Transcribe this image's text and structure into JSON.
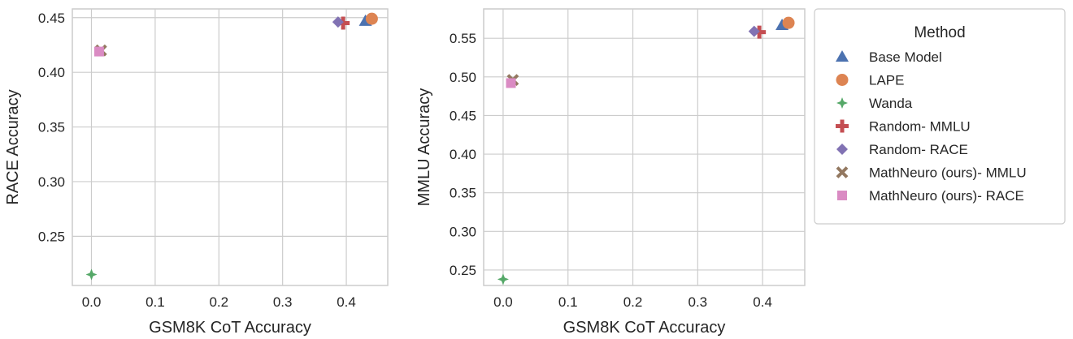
{
  "chart_data": [
    {
      "type": "scatter",
      "title": "",
      "xlabel": "GSM8K CoT Accuracy",
      "ylabel": "RACE Accuracy",
      "xlim": [
        -0.03,
        0.465
      ],
      "ylim": [
        0.205,
        0.458
      ],
      "xticks": [
        "0.0",
        "0.1",
        "0.2",
        "0.3",
        "0.4"
      ],
      "yticks": [
        "0.25",
        "0.30",
        "0.35",
        "0.40",
        "0.45"
      ],
      "grid": true,
      "series": [
        {
          "name": "Base Model",
          "x": [
            0.43
          ],
          "y": [
            0.447
          ]
        },
        {
          "name": "LAPE",
          "x": [
            0.44
          ],
          "y": [
            0.449
          ]
        },
        {
          "name": "Wanda",
          "x": [
            0.0
          ],
          "y": [
            0.215
          ]
        },
        {
          "name": "Random- MMLU",
          "x": [
            0.395
          ],
          "y": [
            0.445
          ]
        },
        {
          "name": "Random- RACE",
          "x": [
            0.387
          ],
          "y": [
            0.446
          ]
        },
        {
          "name": "MathNeuro (ours)- MMLU",
          "x": [
            0.015
          ],
          "y": [
            0.42
          ]
        },
        {
          "name": "MathNeuro (ours)- RACE",
          "x": [
            0.012
          ],
          "y": [
            0.419
          ]
        }
      ]
    },
    {
      "type": "scatter",
      "title": "",
      "xlabel": "GSM8K CoT Accuracy",
      "ylabel": "MMLU Accuracy",
      "xlim": [
        -0.03,
        0.465
      ],
      "ylim": [
        0.23,
        0.588
      ],
      "xticks": [
        "0.0",
        "0.1",
        "0.2",
        "0.3",
        "0.4"
      ],
      "yticks": [
        "0.25",
        "0.30",
        "0.35",
        "0.40",
        "0.45",
        "0.50",
        "0.55"
      ],
      "grid": true,
      "series": [
        {
          "name": "Base Model",
          "x": [
            0.43
          ],
          "y": [
            0.567
          ]
        },
        {
          "name": "LAPE",
          "x": [
            0.44
          ],
          "y": [
            0.57
          ]
        },
        {
          "name": "Wanda",
          "x": [
            0.0
          ],
          "y": [
            0.238
          ]
        },
        {
          "name": "Random- MMLU",
          "x": [
            0.395
          ],
          "y": [
            0.558
          ]
        },
        {
          "name": "Random- RACE",
          "x": [
            0.387
          ],
          "y": [
            0.559
          ]
        },
        {
          "name": "MathNeuro (ours)- MMLU",
          "x": [
            0.015
          ],
          "y": [
            0.496
          ]
        },
        {
          "name": "MathNeuro (ours)- RACE",
          "x": [
            0.012
          ],
          "y": [
            0.492
          ]
        }
      ]
    }
  ],
  "legend": {
    "title": "Method",
    "placement": "right",
    "items": [
      {
        "label": "Base Model",
        "marker": "triangle",
        "color": "#4C72B0"
      },
      {
        "label": "LAPE",
        "marker": "circle",
        "color": "#DD8452"
      },
      {
        "label": "Wanda",
        "marker": "star4",
        "color": "#55A868"
      },
      {
        "label": "Random- MMLU",
        "marker": "plus",
        "color": "#C44E52"
      },
      {
        "label": "Random- RACE",
        "marker": "diamond",
        "color": "#8172B3"
      },
      {
        "label": "MathNeuro (ours)- MMLU",
        "marker": "x",
        "color": "#937860"
      },
      {
        "label": "MathNeuro (ours)- RACE",
        "marker": "square",
        "color": "#DA8BC3"
      }
    ]
  }
}
